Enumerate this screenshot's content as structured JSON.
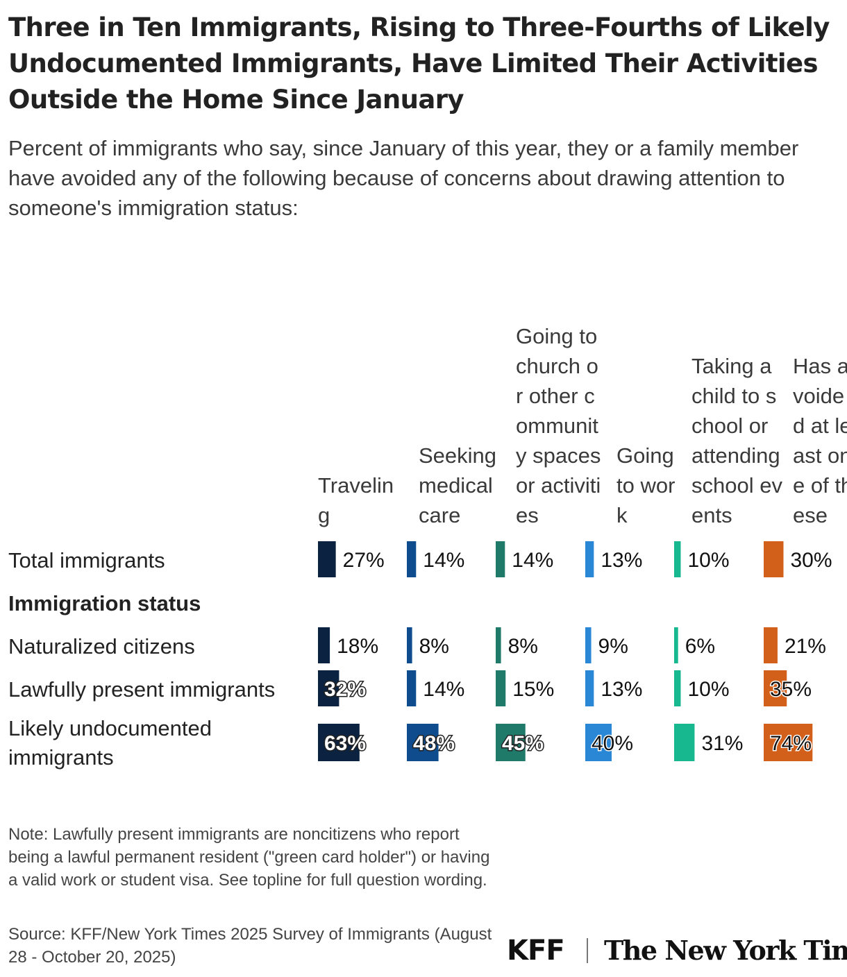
{
  "title": "Three in Ten Immigrants, Rising to Three-Fourths of Likely Undocumented Immigrants, Have Limited Their Activities Outside the Home Since January",
  "subtitle": "Percent of immigrants who say, since January of this year, they or a family member have avoided any of the following because of concerns about drawing attention to someone's immigration status:",
  "note": "Note: Lawfully present immigrants are noncitizens who report being a lawful permanent resident (\"green card holder\") or having a valid work or student visa. See topline for full question wording.",
  "source": "Source: KFF/New York Times 2025 Survey of Immigrants (August 28 - October 20, 2025)",
  "logos": {
    "kff": "KFF",
    "nyt": "The New York Times"
  },
  "chart_data": {
    "type": "bar",
    "title": "Three in Ten Immigrants, Rising to Three-Fourths of Likely Undocumented Immigrants, Have Limited Their Activities Outside the Home Since January",
    "subtitle": "Percent of immigrants who say, since January of this year, they or a family member have avoided any of the following because of concerns about drawing attention to someone's immigration status:",
    "unit": "%",
    "columns": [
      {
        "label": "Traveling",
        "color": "#0b2340"
      },
      {
        "label": "Seeking medical care",
        "color": "#0e4c8e"
      },
      {
        "label": "Going to church or other community spaces or activities",
        "color": "#1f7a6a"
      },
      {
        "label": "Going to work",
        "color": "#2a87d6"
      },
      {
        "label": "Taking a child to school or attending school events",
        "color": "#17b890"
      },
      {
        "label": "Has avoided at least one of these",
        "color": "#d2601a"
      }
    ],
    "rows": [
      {
        "label": "Total immigrants",
        "values": [
          27,
          14,
          14,
          13,
          10,
          30
        ]
      },
      {
        "label": "Immigration status",
        "group": true
      },
      {
        "label": "Naturalized citizens",
        "values": [
          18,
          8,
          8,
          9,
          6,
          21
        ]
      },
      {
        "label": "Lawfully present immigrants",
        "values": [
          32,
          14,
          15,
          13,
          10,
          35
        ]
      },
      {
        "label": "Likely undocumented immigrants",
        "values": [
          63,
          48,
          45,
          40,
          31,
          74
        ]
      }
    ]
  }
}
